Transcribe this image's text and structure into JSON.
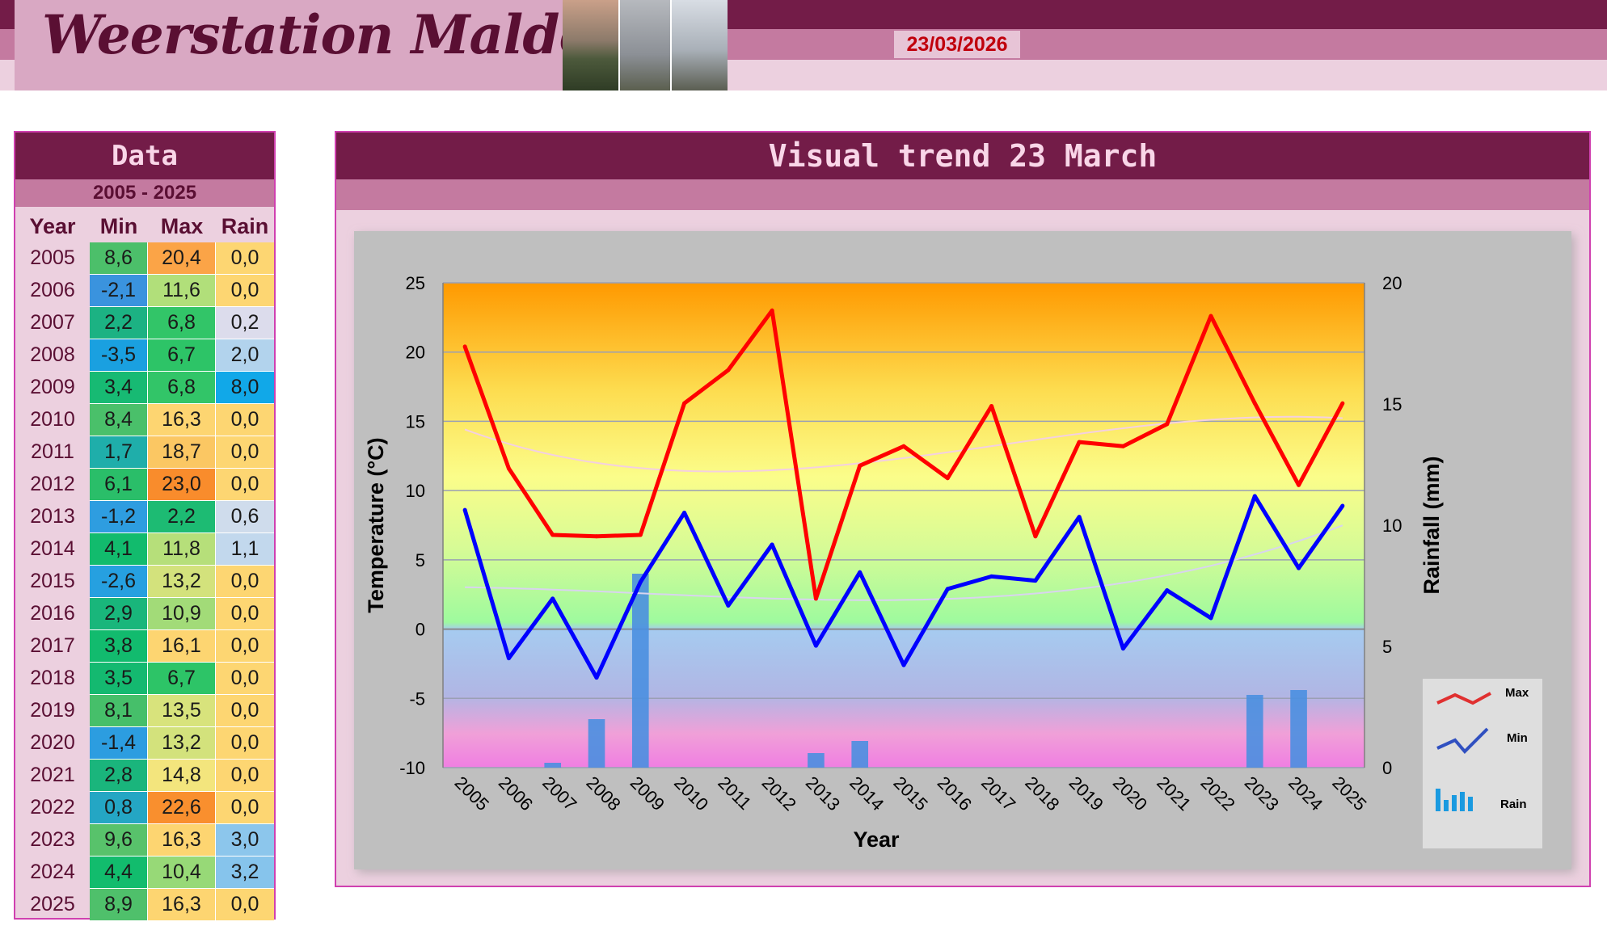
{
  "header": {
    "title": "Weerstation Malderen",
    "date": "23/03/2026"
  },
  "data_panel": {
    "title": "Data",
    "range": "2005 - 2025",
    "columns": [
      "Year",
      "Min",
      "Max",
      "Rain"
    ],
    "rows": [
      {
        "year": "2005",
        "min": "8,6",
        "max": "20,4",
        "rain": "0,0",
        "min_color": "#4cbf6a",
        "max_color": "#fba447",
        "rain_color": "#fdd672"
      },
      {
        "year": "2006",
        "min": "-2,1",
        "max": "11,6",
        "rain": "0,0",
        "min_color": "#3a93de",
        "max_color": "#b1df7a",
        "rain_color": "#fdd672"
      },
      {
        "year": "2007",
        "min": "2,2",
        "max": "6,8",
        "rain": "0,2",
        "min_color": "#1cb283",
        "max_color": "#32c568",
        "rain_color": "#dcdcec"
      },
      {
        "year": "2008",
        "min": "-3,5",
        "max": "6,7",
        "rain": "2,0",
        "min_color": "#1aa0e0",
        "max_color": "#2dc467",
        "rain_color": "#b2d3ed"
      },
      {
        "year": "2009",
        "min": "3,4",
        "max": "6,8",
        "rain": "8,0",
        "min_color": "#17ba73",
        "max_color": "#32c568",
        "rain_color": "#11a8e8"
      },
      {
        "year": "2010",
        "min": "8,4",
        "max": "16,3",
        "rain": "0,0",
        "min_color": "#4ac06a",
        "max_color": "#fdd571",
        "rain_color": "#fdd672"
      },
      {
        "year": "2011",
        "min": "1,7",
        "max": "18,7",
        "rain": "0,0",
        "min_color": "#1faeaa",
        "max_color": "#fbc763",
        "rain_color": "#fdd672"
      },
      {
        "year": "2012",
        "min": "6,1",
        "max": "23,0",
        "rain": "0,0",
        "min_color": "#2abe69",
        "max_color": "#f98c2c",
        "rain_color": "#fdd672"
      },
      {
        "year": "2013",
        "min": "-1,2",
        "max": "2,2",
        "rain": "0,6",
        "min_color": "#2e9de0",
        "max_color": "#1dbb73",
        "rain_color": "#cfdcec"
      },
      {
        "year": "2014",
        "min": "4,1",
        "max": "11,8",
        "rain": "1,1",
        "min_color": "#12bb6d",
        "max_color": "#b6df7a",
        "rain_color": "#c2d8ed"
      },
      {
        "year": "2015",
        "min": "-2,6",
        "max": "13,2",
        "rain": "0,0",
        "min_color": "#26a0e0",
        "max_color": "#d3e27c",
        "rain_color": "#fdd672"
      },
      {
        "year": "2016",
        "min": "2,9",
        "max": "10,9",
        "rain": "0,0",
        "min_color": "#19b67b",
        "max_color": "#a2db78",
        "rain_color": "#fdd672"
      },
      {
        "year": "2017",
        "min": "3,8",
        "max": "16,1",
        "rain": "0,0",
        "min_color": "#12bb6e",
        "max_color": "#fdd571",
        "rain_color": "#fdd672"
      },
      {
        "year": "2018",
        "min": "3,5",
        "max": "6,7",
        "rain": "0,0",
        "min_color": "#14b970",
        "max_color": "#2dc467",
        "rain_color": "#fdd672"
      },
      {
        "year": "2019",
        "min": "8,1",
        "max": "13,5",
        "rain": "0,0",
        "min_color": "#46bf6a",
        "max_color": "#d8e37c",
        "rain_color": "#fdd672"
      },
      {
        "year": "2020",
        "min": "-1,4",
        "max": "13,2",
        "rain": "0,0",
        "min_color": "#2c9de0",
        "max_color": "#d3e27c",
        "rain_color": "#fdd672"
      },
      {
        "year": "2021",
        "min": "2,8",
        "max": "14,8",
        "rain": "0,0",
        "min_color": "#1ab57c",
        "max_color": "#f3e57d",
        "rain_color": "#fdd672"
      },
      {
        "year": "2022",
        "min": "0,8",
        "max": "22,6",
        "rain": "0,0",
        "min_color": "#24a6c4",
        "max_color": "#f98f2e",
        "rain_color": "#fdd672"
      },
      {
        "year": "2023",
        "min": "9,6",
        "max": "16,3",
        "rain": "3,0",
        "min_color": "#58c26b",
        "max_color": "#fdd571",
        "rain_color": "#8cc6ec"
      },
      {
        "year": "2024",
        "min": "4,4",
        "max": "10,4",
        "rain": "3,2",
        "min_color": "#12bc6d",
        "max_color": "#97d977",
        "rain_color": "#86c4ec"
      },
      {
        "year": "2025",
        "min": "8,9",
        "max": "16,3",
        "rain": "0,0",
        "min_color": "#4fc06b",
        "max_color": "#fdd571",
        "rain_color": "#fdd672"
      }
    ]
  },
  "chart_panel": {
    "title": "Visual trend 23 March"
  },
  "chart_data": {
    "type": "line",
    "title": "",
    "xlabel": "Year",
    "ylabel": "Temperature (°C)",
    "y2label": "Rainfall (mm)",
    "x": [
      "2005",
      "2006",
      "2007",
      "2008",
      "2009",
      "2010",
      "2011",
      "2012",
      "2013",
      "2014",
      "2015",
      "2016",
      "2017",
      "2018",
      "2019",
      "2020",
      "2021",
      "2022",
      "2023",
      "2024",
      "2025"
    ],
    "ylim": [
      -10,
      25
    ],
    "y2lim": [
      0,
      20
    ],
    "yticks": [
      "25",
      "20",
      "15",
      "10",
      "5",
      "0",
      "-5",
      "-10"
    ],
    "y2ticks": [
      "20",
      "15",
      "10",
      "5",
      "0"
    ],
    "series": [
      {
        "name": "Max",
        "type": "line",
        "axis": "left",
        "color": "#ff0000",
        "values": [
          20.4,
          11.6,
          6.8,
          6.7,
          6.8,
          16.3,
          18.7,
          23.0,
          2.2,
          11.8,
          13.2,
          10.9,
          16.1,
          6.7,
          13.5,
          13.2,
          14.8,
          22.6,
          16.3,
          10.4,
          16.3
        ]
      },
      {
        "name": "Min",
        "type": "line",
        "axis": "left",
        "color": "#0000ff",
        "values": [
          8.6,
          -2.1,
          2.2,
          -3.5,
          3.4,
          8.4,
          1.7,
          6.1,
          -1.2,
          4.1,
          -2.6,
          2.9,
          3.8,
          3.5,
          8.1,
          -1.4,
          2.8,
          0.8,
          9.6,
          4.4,
          8.9
        ]
      },
      {
        "name": "Rain",
        "type": "bar",
        "axis": "right",
        "color": "#4a8fe0",
        "values": [
          0.0,
          0.0,
          0.2,
          2.0,
          8.0,
          0.0,
          0.0,
          0.0,
          0.6,
          1.1,
          0.0,
          0.0,
          0.0,
          0.0,
          0.0,
          0.0,
          0.0,
          0.0,
          3.0,
          3.2,
          0.0
        ]
      }
    ],
    "legend": {
      "position": "bottom-right",
      "entries": [
        "Max",
        "Min",
        "Rain"
      ]
    },
    "grid": true
  }
}
